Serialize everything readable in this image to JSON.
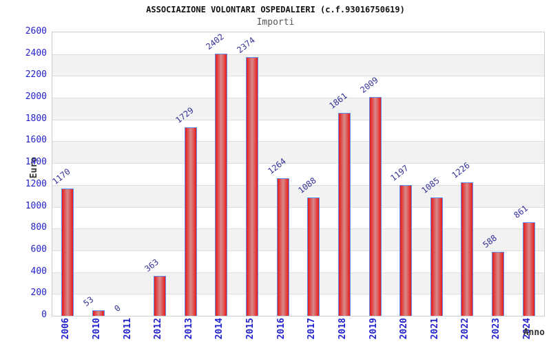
{
  "header": {
    "title": "ASSOCIAZIONE VOLONTARI OSPEDALIERI (c.f.93016750619)",
    "subtitle": "Importi"
  },
  "chart_data": {
    "type": "bar",
    "title": "ASSOCIAZIONE VOLONTARI OSPEDALIERI (c.f.93016750619)",
    "subtitle": "Importi",
    "xlabel": "Anno",
    "ylabel": "Euro",
    "categories": [
      "2006",
      "2010",
      "2011",
      "2012",
      "2013",
      "2014",
      "2015",
      "2016",
      "2017",
      "2018",
      "2019",
      "2020",
      "2021",
      "2022",
      "2023",
      "2024"
    ],
    "values": [
      1170,
      53,
      0,
      363,
      1729,
      2402,
      2374,
      1264,
      1088,
      1861,
      2009,
      1197,
      1085,
      1226,
      588,
      861
    ],
    "ylim": [
      0,
      2600
    ],
    "ytick_step": 200,
    "grid": true,
    "legend": "none",
    "colors": {
      "bar_edge": "#e81a1a",
      "bar_center": "#d88b8b",
      "bar_border": "#5b8ff0",
      "axis_tick_text": "#2222cc",
      "value_label_text": "#333399",
      "band_gray": "#f2f2f2",
      "gridline": "#dddddd",
      "plot_border": "#cccccc",
      "title_text": "#111111",
      "subtitle_text": "#555555",
      "axis_title_text": "#333333"
    }
  }
}
